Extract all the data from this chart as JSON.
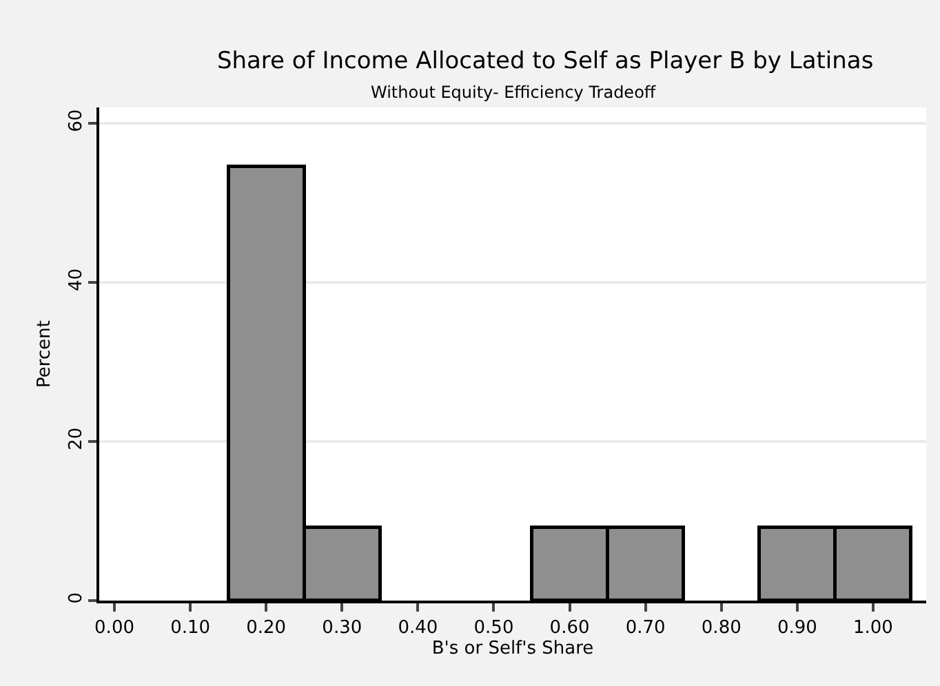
{
  "chart_data": {
    "type": "histogram",
    "title": "Share of Income Allocated to Self as Player B by Latinas",
    "subtitle": "Without Equity- Efficiency Tradeoff",
    "xlabel": "B's or Self's Share",
    "ylabel": "Percent",
    "bins": [
      0.15,
      0.25,
      0.35,
      0.45,
      0.55,
      0.65,
      0.75,
      0.85,
      0.95,
      1.05
    ],
    "values": [
      54.5,
      9.1,
      0,
      0,
      9.1,
      9.1,
      0,
      9.1,
      9.1
    ],
    "color": "#8f8f8f",
    "xlim": [
      -0.02,
      1.07
    ],
    "xticks": [
      {
        "value": 0,
        "label": "0.00"
      },
      {
        "value": 0.1,
        "label": "0.10"
      },
      {
        "value": 0.2,
        "label": "0.20"
      },
      {
        "value": 0.3,
        "label": "0.30"
      },
      {
        "value": 0.4,
        "label": "0.40"
      },
      {
        "value": 0.5,
        "label": "0.50"
      },
      {
        "value": 0.6,
        "label": "0.60"
      },
      {
        "value": 0.7,
        "label": "0.70"
      },
      {
        "value": 0.8,
        "label": "0.80"
      },
      {
        "value": 0.9,
        "label": "0.90"
      },
      {
        "value": 1,
        "label": "1.00"
      }
    ],
    "ylim": [
      0,
      62
    ],
    "yticks": [
      0,
      20,
      40,
      60
    ],
    "grid": "y"
  }
}
